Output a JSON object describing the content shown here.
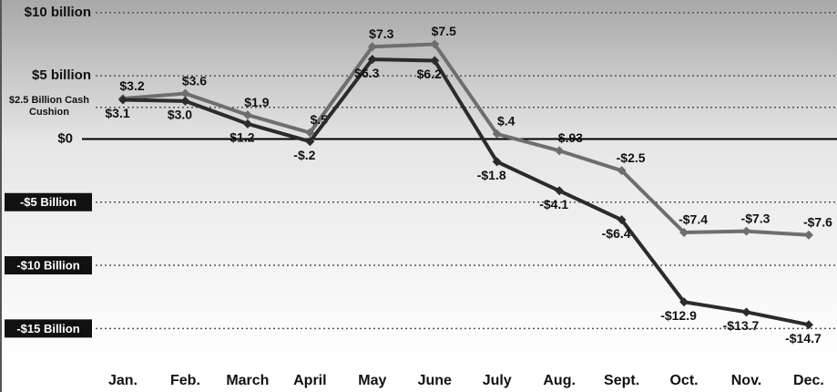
{
  "chart_data": {
    "type": "line",
    "categories": [
      "Jan.",
      "Feb.",
      "March",
      "April",
      "May",
      "June",
      "July",
      "Aug.",
      "Sept.",
      "Oct.",
      "Nov.",
      "Dec."
    ],
    "series": [
      {
        "color": "#6e6e6e",
        "values": [
          3.2,
          3.6,
          1.9,
          0.5,
          7.3,
          7.5,
          0.4,
          -0.93,
          -2.5,
          -7.4,
          -7.3,
          -7.6
        ],
        "value_labels": [
          "$3.2",
          "$3.6",
          "$1.9",
          "$.5",
          "$7.3",
          "$7.5",
          "$.4",
          "-$.93",
          "-$2.5",
          "-$7.4",
          "-$7.3",
          "-$7.6"
        ]
      },
      {
        "color": "#2b2b2b",
        "values": [
          3.1,
          3.0,
          1.2,
          -0.2,
          6.3,
          6.2,
          -1.8,
          -4.1,
          -6.4,
          -12.9,
          -13.7,
          -14.7
        ],
        "value_labels": [
          "$3.1",
          "$3.0",
          "$1.2",
          "-$.2",
          "$6.3",
          "$6.2",
          "-$1.8",
          "-$4.1",
          "-$6.4",
          "-$12.9",
          "-$13.7",
          "-$14.7"
        ]
      }
    ],
    "ylim": [
      -17.5,
      11
    ],
    "yticks": [
      {
        "value": 10,
        "label": "$10 billion"
      },
      {
        "value": 5,
        "label": "$5 billion"
      },
      {
        "value": 2.5,
        "label": "$2.5 Billion Cash Cushion"
      },
      {
        "value": 0,
        "label": "$0"
      },
      {
        "value": -5,
        "label": "-$5 Billion"
      },
      {
        "value": -10,
        "label": "-$10 Billion"
      },
      {
        "value": -15,
        "label": "-$15 Billion"
      }
    ],
    "grid": true
  }
}
